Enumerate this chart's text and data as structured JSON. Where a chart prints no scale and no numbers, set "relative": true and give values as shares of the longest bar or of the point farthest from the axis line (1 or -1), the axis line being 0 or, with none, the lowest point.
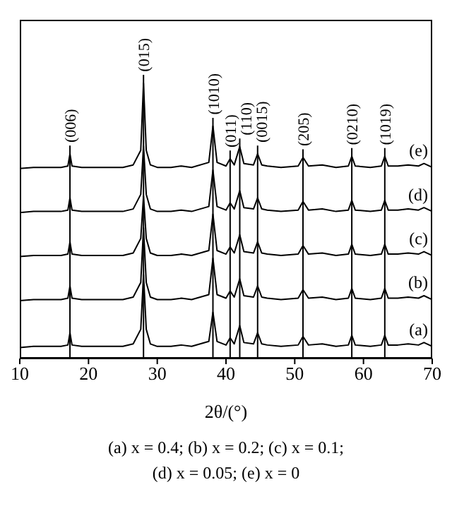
{
  "chart_data": {
    "type": "line",
    "relative": true,
    "xlabel": "2θ/(°)",
    "xlim": [
      10,
      70
    ],
    "xticks": [
      10,
      20,
      30,
      40,
      50,
      60,
      70
    ],
    "grid": false,
    "legend": false,
    "marker": "none",
    "line_style": "solid",
    "tick_labels": "x",
    "x": [
      10,
      12,
      14,
      16,
      17,
      17.3,
      17.6,
      19,
      22,
      25,
      26.5,
      27.6,
      28,
      28.4,
      29,
      30,
      32,
      33.5,
      35,
      37.5,
      38.1,
      38.7,
      40,
      40.6,
      41.2,
      42,
      42.6,
      44,
      44.6,
      45.2,
      46,
      48,
      50.5,
      51.2,
      52,
      54,
      56,
      57.8,
      58.3,
      58.8,
      61,
      62.6,
      63.1,
      63.6,
      65,
      66.5,
      68,
      68.8,
      70
    ],
    "series": [
      {
        "name": "(e)",
        "color": "#000000",
        "values": [
          0.69,
          0.694,
          0.694,
          0.694,
          0.699,
          0.743,
          0.699,
          0.694,
          0.694,
          0.694,
          0.703,
          0.756,
          1,
          0.756,
          0.703,
          0.694,
          0.694,
          0.699,
          0.694,
          0.712,
          0.844,
          0.712,
          0.699,
          0.725,
          0.703,
          0.769,
          0.708,
          0.703,
          0.743,
          0.703,
          0.699,
          0.694,
          0.699,
          0.73,
          0.699,
          0.703,
          0.694,
          0.699,
          0.734,
          0.699,
          0.694,
          0.699,
          0.734,
          0.699,
          0.699,
          0.703,
          0.699,
          0.708,
          0.694
        ]
      },
      {
        "name": "(d)",
        "color": "#000000",
        "values": [
          0.53,
          0.534,
          0.534,
          0.534,
          0.539,
          0.583,
          0.539,
          0.534,
          0.534,
          0.534,
          0.543,
          0.596,
          0.772,
          0.596,
          0.543,
          0.534,
          0.534,
          0.539,
          0.534,
          0.552,
          0.684,
          0.552,
          0.539,
          0.565,
          0.543,
          0.609,
          0.548,
          0.543,
          0.583,
          0.543,
          0.539,
          0.534,
          0.539,
          0.57,
          0.539,
          0.543,
          0.534,
          0.539,
          0.574,
          0.539,
          0.534,
          0.539,
          0.574,
          0.539,
          0.539,
          0.543,
          0.539,
          0.548,
          0.534
        ]
      },
      {
        "name": "(c)",
        "color": "#000000",
        "values": [
          0.37,
          0.374,
          0.374,
          0.374,
          0.379,
          0.423,
          0.379,
          0.374,
          0.374,
          0.374,
          0.383,
          0.436,
          0.59,
          0.436,
          0.383,
          0.374,
          0.374,
          0.379,
          0.374,
          0.392,
          0.524,
          0.392,
          0.379,
          0.405,
          0.383,
          0.449,
          0.388,
          0.383,
          0.423,
          0.383,
          0.379,
          0.374,
          0.379,
          0.41,
          0.379,
          0.383,
          0.374,
          0.379,
          0.414,
          0.379,
          0.374,
          0.379,
          0.414,
          0.379,
          0.379,
          0.383,
          0.379,
          0.388,
          0.374
        ]
      },
      {
        "name": "(b)",
        "color": "#000000",
        "values": [
          0.21,
          0.214,
          0.214,
          0.214,
          0.219,
          0.263,
          0.219,
          0.214,
          0.214,
          0.214,
          0.223,
          0.276,
          0.474,
          0.276,
          0.223,
          0.214,
          0.214,
          0.219,
          0.214,
          0.232,
          0.364,
          0.232,
          0.219,
          0.245,
          0.223,
          0.289,
          0.228,
          0.223,
          0.263,
          0.223,
          0.219,
          0.214,
          0.219,
          0.25,
          0.219,
          0.223,
          0.214,
          0.219,
          0.254,
          0.219,
          0.214,
          0.219,
          0.254,
          0.219,
          0.219,
          0.223,
          0.219,
          0.228,
          0.214
        ]
      },
      {
        "name": "(a)",
        "color": "#000000",
        "values": [
          0.04,
          0.044,
          0.044,
          0.044,
          0.049,
          0.093,
          0.049,
          0.044,
          0.044,
          0.044,
          0.053,
          0.106,
          0.304,
          0.106,
          0.053,
          0.044,
          0.044,
          0.049,
          0.044,
          0.062,
          0.168,
          0.062,
          0.049,
          0.075,
          0.053,
          0.119,
          0.058,
          0.053,
          0.093,
          0.053,
          0.049,
          0.044,
          0.049,
          0.08,
          0.049,
          0.053,
          0.044,
          0.049,
          0.084,
          0.049,
          0.044,
          0.049,
          0.084,
          0.049,
          0.049,
          0.053,
          0.049,
          0.058,
          0.044
        ]
      }
    ],
    "ref_lines": [
      {
        "axis": "x",
        "value": 17.3,
        "color": "#000000"
      },
      {
        "axis": "x",
        "value": 28,
        "color": "#000000"
      },
      {
        "axis": "x",
        "value": 38.1,
        "color": "#000000"
      },
      {
        "axis": "x",
        "value": 40.6,
        "color": "#000000"
      },
      {
        "axis": "x",
        "value": 42,
        "color": "#000000"
      },
      {
        "axis": "x",
        "value": 44.6,
        "color": "#000000"
      },
      {
        "axis": "x",
        "value": 51.2,
        "color": "#000000"
      },
      {
        "axis": "x",
        "value": 58.3,
        "color": "#000000"
      },
      {
        "axis": "x",
        "value": 63.1,
        "color": "#000000"
      }
    ],
    "annotations": [
      {
        "text": "(006)",
        "x": 17.3,
        "y": 0.743
      },
      {
        "text": "(015)",
        "x": 28,
        "y": 1
      },
      {
        "text": "(1010)",
        "x": 38.1,
        "y": 0.844
      },
      {
        "text": "(011)",
        "x": 40.6,
        "y": 0.725
      },
      {
        "text": "(110)",
        "x": 42,
        "y": 0.769
      },
      {
        "text": "(0015)",
        "x": 44.6,
        "y": 0.743
      },
      {
        "text": "(205)",
        "x": 51.2,
        "y": 0.73
      },
      {
        "text": "(0210)",
        "x": 58.3,
        "y": 0.734
      },
      {
        "text": "(1019)",
        "x": 63.1,
        "y": 0.734
      },
      "(a) x = 0.4; (b) x = 0.2; (c) x = 0.1;",
      "(d) x = 0.05; (e) x = 0"
    ]
  }
}
